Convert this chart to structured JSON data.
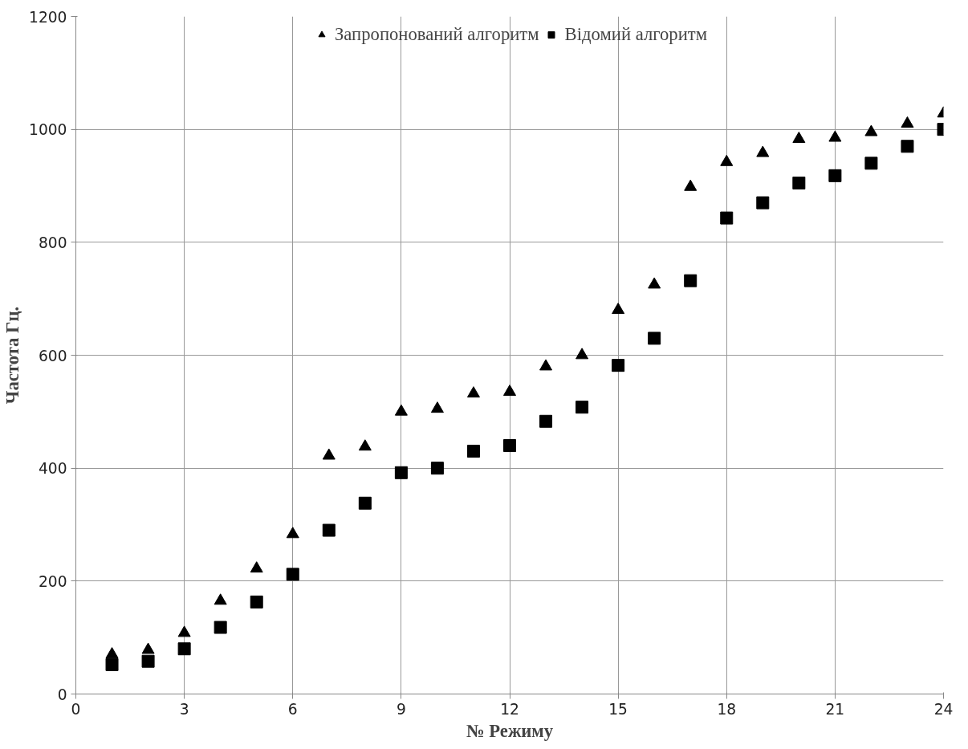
{
  "chart_data": {
    "type": "scatter",
    "xlabel": "№ Режиму",
    "ylabel": "Частота Гц.",
    "x": [
      1,
      2,
      3,
      4,
      5,
      6,
      7,
      8,
      9,
      10,
      11,
      12,
      13,
      14,
      15,
      16,
      17,
      18,
      19,
      20,
      21,
      22,
      23,
      24
    ],
    "series": [
      {
        "name": "Запропонований алгоритм",
        "color": "#000000",
        "marker": "triangle",
        "values": [
          70,
          78,
          108,
          165,
          222,
          283,
          422,
          438,
          500,
          505,
          532,
          535,
          580,
          600,
          680,
          725,
          898,
          942,
          958,
          983,
          985,
          995,
          1010,
          1028
        ]
      },
      {
        "name": "Відомий алгоритм",
        "color": "#000000",
        "marker": "square",
        "values": [
          52,
          58,
          80,
          118,
          163,
          212,
          290,
          338,
          392,
          400,
          430,
          440,
          483,
          508,
          582,
          630,
          732,
          843,
          870,
          905,
          918,
          940,
          970,
          1000
        ]
      }
    ],
    "xlim": [
      0,
      24
    ],
    "xticks": [
      0,
      3,
      6,
      9,
      12,
      15,
      18,
      21,
      24
    ],
    "ylim": [
      0,
      1200
    ],
    "yticks": [
      0,
      200,
      400,
      600,
      800,
      1000,
      1200
    ],
    "grid": true,
    "legend": "top"
  }
}
